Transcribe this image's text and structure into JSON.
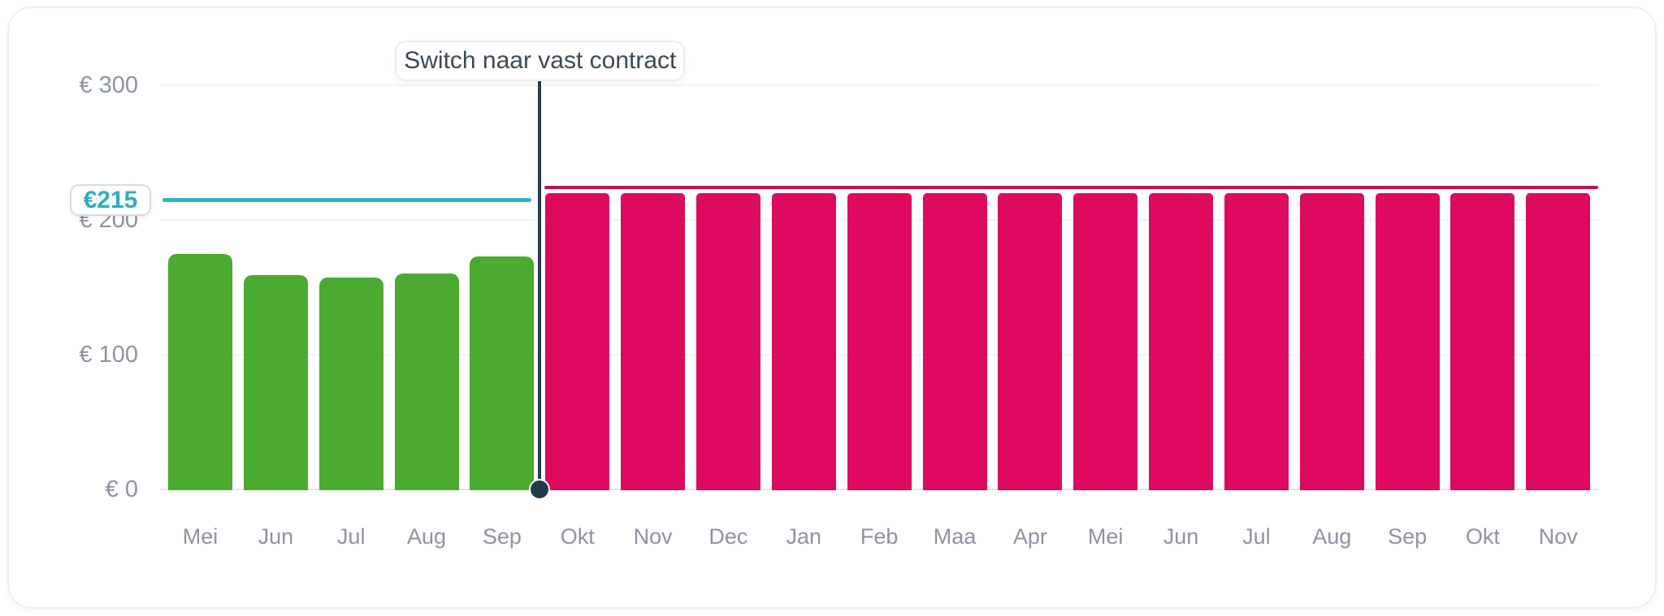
{
  "tooltip": {
    "label": "Switch naar vast contract"
  },
  "reference_badge": {
    "label": "€215"
  },
  "colors": {
    "green_bar": "#4aab30",
    "pink_bar": "#dd0a5f",
    "fixed_price_line": "#c30d53",
    "reference_line": "#35b5cb",
    "switch_marker": "#24404e",
    "axis_text": "#8b95a1"
  },
  "chart_data": {
    "type": "bar",
    "title": "",
    "xlabel": "",
    "ylabel": "",
    "categories": [
      "Mei",
      "Jun",
      "Jul",
      "Aug",
      "Sep",
      "Okt",
      "Nov",
      "Dec",
      "Jan",
      "Feb",
      "Maa",
      "Apr",
      "Mei",
      "Jun",
      "Jul",
      "Aug",
      "Sep",
      "Okt",
      "Nov"
    ],
    "series": [
      {
        "name": "green-bars-before-switch",
        "color": "#4aab30",
        "values": [
          175,
          159,
          157,
          160,
          173
        ]
      },
      {
        "name": "pink-bars-after-switch",
        "color": "#dd0a5f",
        "values": [
          220,
          220,
          220,
          220,
          220,
          220,
          220,
          220,
          220,
          220,
          220,
          220,
          220,
          220
        ]
      }
    ],
    "switch_index": 5,
    "annotation": {
      "label": "Switch naar vast contract",
      "at_index": 5
    },
    "reference_line": {
      "label": "€215",
      "value": 215,
      "color": "#35b5cb"
    },
    "top_line": {
      "value": 224,
      "color": "#c30d53"
    },
    "y_ticks": [
      {
        "label": "€ 0",
        "value": 0
      },
      {
        "label": "€ 100",
        "value": 100
      },
      {
        "label": "€ 200",
        "value": 200
      },
      {
        "label": "€ 300",
        "value": 300
      }
    ],
    "ylim": [
      0,
      300
    ],
    "grid": true,
    "legend_position": "none"
  }
}
